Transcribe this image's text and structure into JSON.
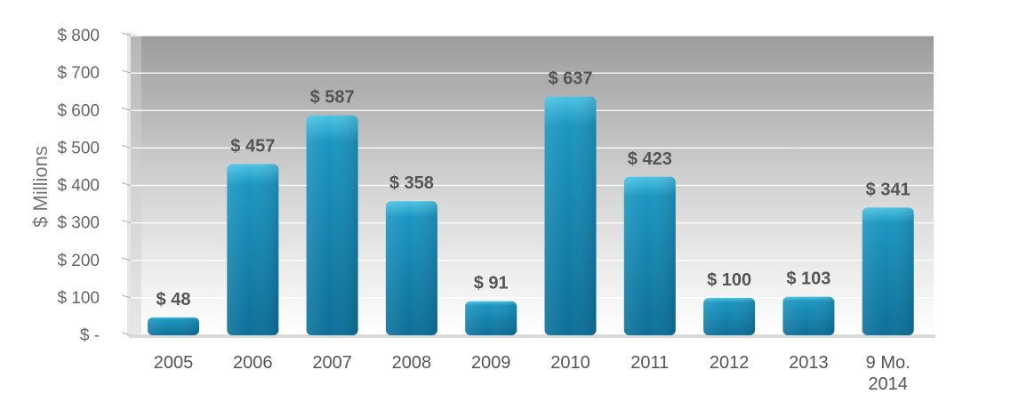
{
  "chart_data": {
    "type": "bar",
    "categories": [
      "2005",
      "2006",
      "2007",
      "2008",
      "2009",
      "2010",
      "2011",
      "2012",
      "2013",
      [
        "9 Mo.",
        "2014"
      ]
    ],
    "values": [
      48,
      457,
      587,
      358,
      91,
      637,
      423,
      100,
      103,
      341
    ],
    "data_labels": [
      "$ 48",
      "$ 457",
      "$ 587",
      "$ 358",
      "$ 91",
      "$ 637",
      "$ 423",
      "$ 100",
      "$ 103",
      "$ 341"
    ],
    "yticks": [
      0,
      100,
      200,
      300,
      400,
      500,
      600,
      700,
      800
    ],
    "ytick_labels": [
      "$ -",
      "$ 100",
      "$ 200",
      "$ 300",
      "$ 400",
      "$ 500",
      "$ 600",
      "$ 700",
      "$ 800"
    ],
    "ylabel": "$ Millions",
    "xlabel": "",
    "title": "",
    "ylim": [
      0,
      800
    ],
    "grid": true,
    "legend": "none",
    "colors": {
      "bar_top": "#4cc3e4",
      "bar_mid": "#1b95c0",
      "bar_bottom": "#0c6f98",
      "plot_bg_top": "#9c9c9c",
      "plot_bg_bottom": "#ffffff",
      "gridline": "#ffffff"
    }
  }
}
